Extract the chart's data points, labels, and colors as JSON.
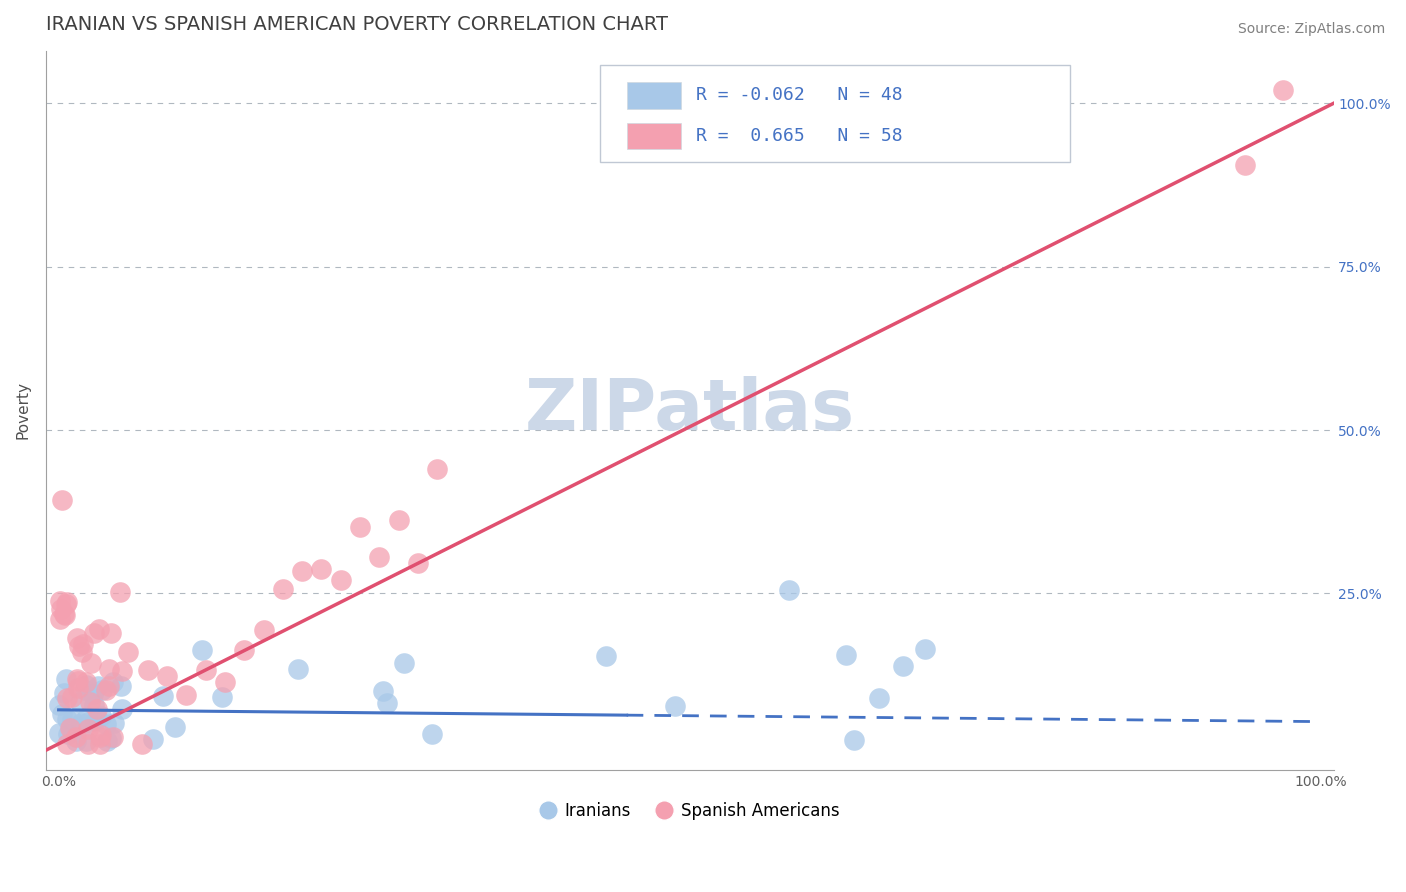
{
  "title": "IRANIAN VS SPANISH AMERICAN POVERTY CORRELATION CHART",
  "source_text": "Source: ZipAtlas.com",
  "xlabel": "",
  "ylabel": "Poverty",
  "xlim": [
    0.0,
    1.0
  ],
  "ylim": [
    -0.02,
    1.08
  ],
  "iranian_R": -0.062,
  "iranian_N": 48,
  "spanish_R": 0.665,
  "spanish_N": 58,
  "iranian_color": "#a8c8e8",
  "spanish_color": "#f4a0b0",
  "iranian_line_color": "#4472c4",
  "spanish_line_color": "#e05070",
  "background_color": "#ffffff",
  "grid_color": "#b0b8c0",
  "title_color": "#404040",
  "watermark_color": "#ccd8e8",
  "legend_text_color": "#4472c4",
  "title_fontsize": 14,
  "axis_label_fontsize": 11,
  "tick_fontsize": 10,
  "legend_fontsize": 13,
  "watermark_fontsize": 52,
  "source_fontsize": 10
}
